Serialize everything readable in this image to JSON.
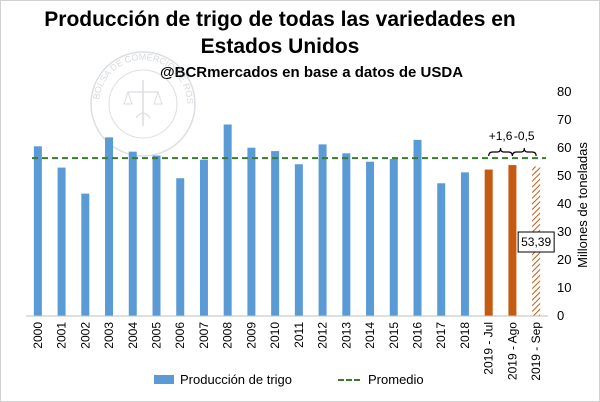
{
  "title_line1": "Producción de trigo de todas las variedades en",
  "title_line2": "Estados Unidos",
  "subtitle": "@BCRmercados en base a datos de USDA",
  "watermark_text": "BOLSA DE COMERCIO DE ROSARIO",
  "colors": {
    "bar": "#5b9bd5",
    "forecast_bar": "#c55a11",
    "average_line": "#3b7a2a",
    "hatch": "#c55a11"
  },
  "chart_data": {
    "type": "bar",
    "title": "Producción de trigo de todas las variedades en Estados Unidos",
    "ylabel": "Millones de toneladas",
    "xlabel": "",
    "ylim": [
      0,
      80
    ],
    "yticks": [
      0,
      10,
      20,
      30,
      40,
      50,
      60,
      70,
      80
    ],
    "grid": false,
    "legend_position": "bottom",
    "categories": [
      "2000",
      "2001",
      "2002",
      "2003",
      "2004",
      "2005",
      "2006",
      "2007",
      "2008",
      "2009",
      "2010",
      "2011",
      "2012",
      "2013",
      "2014",
      "2015",
      "2016",
      "2017",
      "2018",
      "2019 - Jul",
      "2019 - Ago",
      "2019 - Sep"
    ],
    "series": [
      {
        "name": "Producción de trigo",
        "values": [
          60.6,
          53.0,
          43.7,
          63.8,
          58.7,
          57.3,
          49.2,
          55.8,
          68.4,
          60.1,
          58.9,
          54.2,
          61.3,
          58.1,
          55.1,
          56.1,
          62.9,
          47.4,
          51.3,
          52.3,
          53.9,
          53.39
        ],
        "styles": [
          "normal",
          "normal",
          "normal",
          "normal",
          "normal",
          "normal",
          "normal",
          "normal",
          "normal",
          "normal",
          "normal",
          "normal",
          "normal",
          "normal",
          "normal",
          "normal",
          "normal",
          "normal",
          "normal",
          "forecast",
          "forecast",
          "hatched"
        ]
      },
      {
        "name": "Promedio",
        "type": "line",
        "value": 56.4
      }
    ],
    "annotations": [
      {
        "text": "+1,6",
        "between": [
          "2019 - Jul",
          "2019 - Ago"
        ]
      },
      {
        "text": "-0,5",
        "between": [
          "2019 - Ago",
          "2019 - Sep"
        ]
      },
      {
        "text": "53,39",
        "category": "2019 - Sep"
      }
    ]
  }
}
